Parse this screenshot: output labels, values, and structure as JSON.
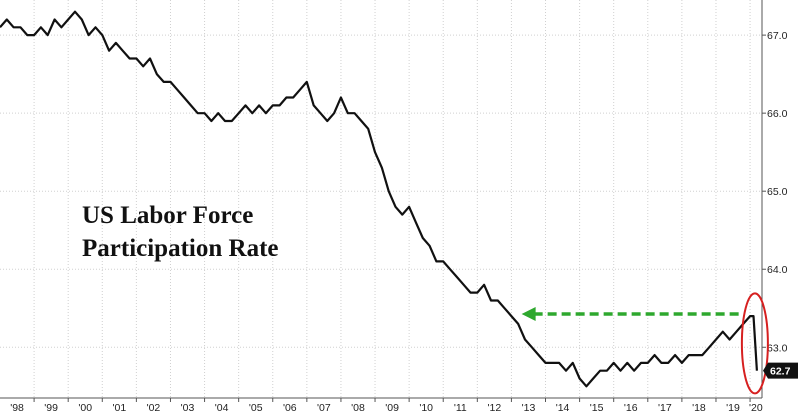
{
  "chart_data": {
    "type": "line",
    "title_lines": [
      "US Labor Force",
      "Participation Rate"
    ],
    "xlabel": "",
    "ylabel": "",
    "x_tick_labels": [
      "'98",
      "'99",
      "'00",
      "'01",
      "'02",
      "'03",
      "'04",
      "'05",
      "'06",
      "'07",
      "'08",
      "'09",
      "'10",
      "'11",
      "'12",
      "'13",
      "'14",
      "'15",
      "'16",
      "'17",
      "'18",
      "'19",
      "'20"
    ],
    "y_ticks": [
      63.0,
      64.0,
      65.0,
      66.0,
      67.0
    ],
    "y_tick_labels": [
      "63.0",
      "64.0",
      "65.0",
      "66.0",
      "67.0"
    ],
    "xlim": [
      1998.0,
      2020.35
    ],
    "ylim": [
      62.35,
      67.45
    ],
    "grid": true,
    "line_color": "#111111",
    "last_value_label": "62.7",
    "series": [
      {
        "x": [
          1998.0,
          1998.2,
          1998.4,
          1998.6,
          1998.8,
          1999.0,
          1999.2,
          1999.4,
          1999.6,
          1999.8,
          2000.0,
          2000.2,
          2000.4,
          2000.6,
          2000.8,
          2001.0,
          2001.2,
          2001.4,
          2001.6,
          2001.8,
          2002.0,
          2002.2,
          2002.4,
          2002.6,
          2002.8,
          2003.0,
          2003.2,
          2003.4,
          2003.6,
          2003.8,
          2004.0,
          2004.2,
          2004.4,
          2004.6,
          2004.8,
          2005.0,
          2005.2,
          2005.4,
          2005.6,
          2005.8,
          2006.0,
          2006.2,
          2006.4,
          2006.6,
          2006.8,
          2007.0,
          2007.2,
          2007.4,
          2007.6,
          2007.8,
          2008.0,
          2008.2,
          2008.4,
          2008.6,
          2008.8,
          2009.0,
          2009.2,
          2009.4,
          2009.6,
          2009.8,
          2010.0,
          2010.2,
          2010.4,
          2010.6,
          2010.8,
          2011.0,
          2011.2,
          2011.4,
          2011.6,
          2011.8,
          2012.0,
          2012.2,
          2012.4,
          2012.6,
          2012.8,
          2013.0,
          2013.2,
          2013.4,
          2013.6,
          2013.8,
          2014.0,
          2014.2,
          2014.4,
          2014.6,
          2014.8,
          2015.0,
          2015.2,
          2015.4,
          2015.6,
          2015.8,
          2016.0,
          2016.2,
          2016.4,
          2016.6,
          2016.8,
          2017.0,
          2017.2,
          2017.4,
          2017.6,
          2017.8,
          2018.0,
          2018.2,
          2018.4,
          2018.6,
          2018.8,
          2019.0,
          2019.2,
          2019.4,
          2019.6,
          2019.8,
          2020.0,
          2020.1,
          2020.2
        ],
        "y": [
          67.1,
          67.2,
          67.1,
          67.1,
          67.0,
          67.0,
          67.1,
          67.0,
          67.2,
          67.1,
          67.2,
          67.3,
          67.2,
          67.0,
          67.1,
          67.0,
          66.8,
          66.9,
          66.8,
          66.7,
          66.7,
          66.6,
          66.7,
          66.5,
          66.4,
          66.4,
          66.3,
          66.2,
          66.1,
          66.0,
          66.0,
          65.9,
          66.0,
          65.9,
          65.9,
          66.0,
          66.1,
          66.0,
          66.1,
          66.0,
          66.1,
          66.1,
          66.2,
          66.2,
          66.3,
          66.4,
          66.1,
          66.0,
          65.9,
          66.0,
          66.2,
          66.0,
          66.0,
          65.9,
          65.8,
          65.5,
          65.3,
          65.0,
          64.8,
          64.7,
          64.8,
          64.6,
          64.4,
          64.3,
          64.1,
          64.1,
          64.0,
          63.9,
          63.8,
          63.7,
          63.7,
          63.8,
          63.6,
          63.6,
          63.5,
          63.4,
          63.3,
          63.1,
          63.0,
          62.9,
          62.8,
          62.8,
          62.8,
          62.7,
          62.8,
          62.6,
          62.5,
          62.6,
          62.7,
          62.7,
          62.8,
          62.7,
          62.8,
          62.7,
          62.8,
          62.8,
          62.9,
          62.8,
          62.8,
          62.9,
          62.8,
          62.9,
          62.9,
          62.9,
          63.0,
          63.1,
          63.2,
          63.1,
          63.2,
          63.3,
          63.4,
          63.4,
          62.7
        ]
      }
    ]
  },
  "annotations": {
    "arrow_color": "#2ea82e",
    "circle_color": "#d62020"
  }
}
